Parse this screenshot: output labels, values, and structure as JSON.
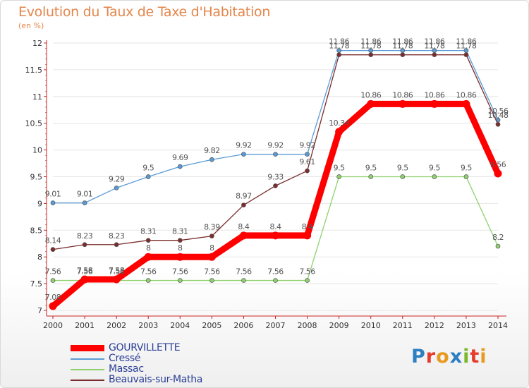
{
  "header": {
    "title": "Evolution du Taux de Taxe d'Habitation",
    "subtitle": "(en %)"
  },
  "logo": {
    "text": "Proxiti",
    "colors": [
      "#2d7fc1",
      "#e53c2c",
      "#e89a1e",
      "#2d7fc1",
      "#7ab829",
      "#e53c2c",
      "#e89a1e"
    ]
  },
  "chart_data": {
    "type": "line",
    "title": "Evolution du Taux de Taxe d'Habitation",
    "subtitle": "(en %)",
    "xlabel": "",
    "ylabel": "",
    "ylim": [
      7,
      12
    ],
    "yticks": [
      "7",
      "7.5",
      "8",
      "8.5",
      "9",
      "9.5",
      "10",
      "10.5",
      "11",
      "11.5",
      "12"
    ],
    "x": [
      "2000",
      "2001",
      "2002",
      "2003",
      "2004",
      "2005",
      "2006",
      "2007",
      "2008",
      "2009",
      "2010",
      "2011",
      "2012",
      "2013",
      "2014"
    ],
    "grid": true,
    "legend_position": "bottom-left",
    "series": [
      {
        "name": "GOURVILLETTE",
        "color": "#ff0000",
        "values": [
          7.08,
          7.58,
          7.58,
          8,
          8,
          8,
          8.4,
          8.4,
          8.4,
          10.34,
          10.86,
          10.86,
          10.86,
          10.86,
          9.56
        ],
        "labels": [
          "7.08",
          "7.58",
          "7.58",
          "8",
          "8",
          "8",
          "8.4",
          "8.4",
          "8.4",
          "10.34",
          "10.86",
          "10.86",
          "10.86",
          "10.86",
          "9.56"
        ]
      },
      {
        "name": "Cressé",
        "color": "#5b9bd5",
        "values": [
          9.01,
          9.01,
          9.29,
          9.5,
          9.69,
          9.82,
          9.92,
          9.92,
          9.92,
          11.86,
          11.86,
          11.86,
          11.86,
          11.86,
          10.56
        ],
        "labels": [
          "9.01",
          "9.01",
          "9.29",
          "9.5",
          "9.69",
          "9.82",
          "9.92",
          "9.92",
          "9.92",
          "11.86",
          "11.86",
          "11.86",
          "11.86",
          "11.86",
          "10.56"
        ]
      },
      {
        "name": "Massac",
        "color": "#8ed16e",
        "values": [
          7.56,
          7.56,
          7.56,
          7.56,
          7.56,
          7.56,
          7.56,
          7.56,
          7.56,
          9.5,
          9.5,
          9.5,
          9.5,
          9.5,
          8.2
        ],
        "labels": [
          "7.56",
          "7.56",
          "7.56",
          "7.56",
          "7.56",
          "7.56",
          "7.56",
          "7.56",
          "7.56",
          "9.5",
          "9.5",
          "9.5",
          "9.5",
          "9.5",
          "8.2"
        ]
      },
      {
        "name": "Beauvais-sur-Matha",
        "color": "#7b2c2c",
        "values": [
          8.14,
          8.23,
          8.23,
          8.31,
          8.31,
          8.39,
          8.97,
          9.33,
          9.61,
          11.78,
          11.78,
          11.78,
          11.78,
          11.78,
          10.48
        ],
        "labels": [
          "8.14",
          "8.23",
          "8.23",
          "8.31",
          "8.31",
          "8.39",
          "8.97",
          "9.33",
          "9.61",
          "11.78",
          "11.78",
          "11.78",
          "11.78",
          "11.78",
          "10.48"
        ]
      }
    ]
  }
}
